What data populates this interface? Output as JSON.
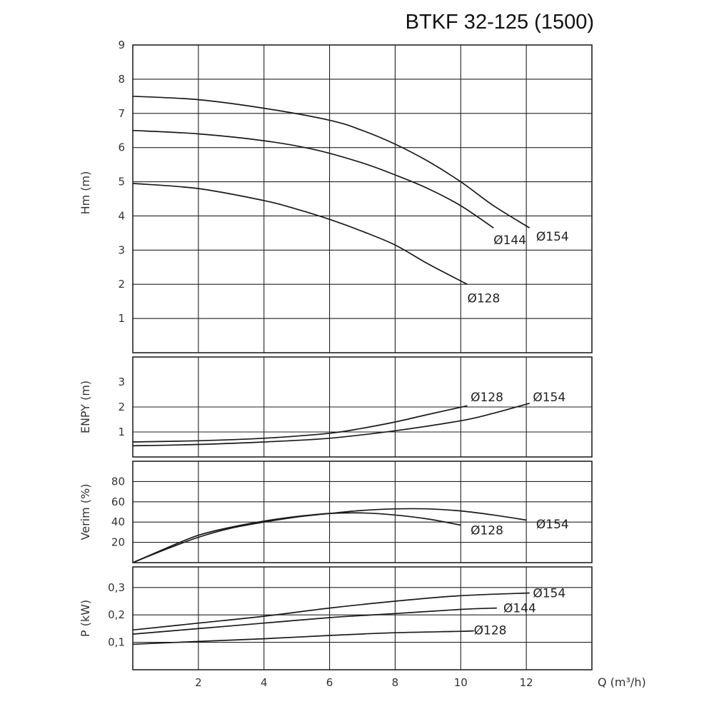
{
  "title": "BTKF 32-125 (1500)",
  "chart_data": {
    "type": "line",
    "x_label": "Q (m³/h)",
    "x_ticks": [
      2,
      4,
      6,
      8,
      10,
      12
    ],
    "x_range": [
      0,
      14
    ],
    "grid": true,
    "panels": [
      {
        "id": "head",
        "ylabel": "Hm (m)",
        "ylim": [
          0,
          9
        ],
        "y_ticks": [
          1,
          2,
          3,
          4,
          5,
          6,
          7,
          8,
          9
        ],
        "y_grid": [
          1,
          2,
          3,
          4,
          5,
          6,
          7,
          8,
          9
        ],
        "series": [
          {
            "name": "Ø154",
            "label_x": 12.3,
            "label_y": 3.4,
            "points": [
              [
                0,
                7.5
              ],
              [
                2,
                7.4
              ],
              [
                4,
                7.15
              ],
              [
                6,
                6.8
              ],
              [
                7,
                6.5
              ],
              [
                8,
                6.1
              ],
              [
                9,
                5.6
              ],
              [
                10,
                5.0
              ],
              [
                11,
                4.3
              ],
              [
                12.1,
                3.65
              ]
            ]
          },
          {
            "name": "Ø144",
            "label_x": 11.0,
            "label_y": 3.3,
            "points": [
              [
                0,
                6.5
              ],
              [
                2,
                6.4
              ],
              [
                4,
                6.2
              ],
              [
                5.5,
                5.95
              ],
              [
                7,
                5.55
              ],
              [
                8,
                5.2
              ],
              [
                9,
                4.8
              ],
              [
                10,
                4.3
              ],
              [
                11,
                3.65
              ]
            ]
          },
          {
            "name": "Ø128",
            "label_x": 10.2,
            "label_y": 1.6,
            "points": [
              [
                0,
                4.95
              ],
              [
                2,
                4.8
              ],
              [
                4,
                4.45
              ],
              [
                5,
                4.2
              ],
              [
                6,
                3.9
              ],
              [
                7,
                3.55
              ],
              [
                8,
                3.15
              ],
              [
                9,
                2.6
              ],
              [
                10.2,
                2.0
              ]
            ]
          }
        ]
      },
      {
        "id": "npsh",
        "ylabel": "ENPY (m)",
        "ylim": [
          0,
          4
        ],
        "y_ticks": [
          1,
          2,
          3
        ],
        "y_grid": [
          1,
          2
        ],
        "series": [
          {
            "name": "Ø128",
            "label_x": 10.3,
            "label_y": 2.4,
            "points": [
              [
                0,
                0.6
              ],
              [
                2,
                0.65
              ],
              [
                4,
                0.75
              ],
              [
                6,
                0.95
              ],
              [
                7,
                1.15
              ],
              [
                8,
                1.4
              ],
              [
                9,
                1.7
              ],
              [
                10.2,
                2.05
              ]
            ]
          },
          {
            "name": "Ø154",
            "label_x": 12.2,
            "label_y": 2.4,
            "points": [
              [
                0,
                0.45
              ],
              [
                2,
                0.5
              ],
              [
                4,
                0.6
              ],
              [
                6,
                0.75
              ],
              [
                8,
                1.05
              ],
              [
                10,
                1.45
              ],
              [
                11,
                1.75
              ],
              [
                12.1,
                2.15
              ]
            ]
          }
        ]
      },
      {
        "id": "efficiency",
        "ylabel": "Verim (%)",
        "ylim": [
          0,
          100
        ],
        "y_ticks": [
          20,
          40,
          60,
          80
        ],
        "y_grid": [
          20,
          40,
          60,
          80
        ],
        "series": [
          {
            "name": "Ø154",
            "label_x": 12.3,
            "label_y": 38,
            "points": [
              [
                0,
                0
              ],
              [
                1,
                13
              ],
              [
                2,
                25
              ],
              [
                3,
                34
              ],
              [
                4,
                40
              ],
              [
                5,
                45
              ],
              [
                6,
                48.5
              ],
              [
                7,
                51.5
              ],
              [
                8,
                53
              ],
              [
                9,
                53
              ],
              [
                10,
                51
              ],
              [
                11,
                47
              ],
              [
                12,
                42
              ]
            ]
          },
          {
            "name": "Ø128",
            "label_x": 10.3,
            "label_y": 32,
            "points": [
              [
                0,
                0
              ],
              [
                1,
                14
              ],
              [
                2,
                27
              ],
              [
                3,
                35
              ],
              [
                4,
                41
              ],
              [
                5,
                45.5
              ],
              [
                6,
                48.5
              ],
              [
                7,
                49
              ],
              [
                8,
                47
              ],
              [
                9,
                43
              ],
              [
                10,
                37
              ]
            ]
          }
        ]
      },
      {
        "id": "power",
        "ylabel": "P (kW)",
        "ylim": [
          0,
          0.375
        ],
        "y_ticks": [
          0.1,
          0.2,
          0.3
        ],
        "y_tick_labels": [
          "0,1",
          "0,2",
          "0,3"
        ],
        "y_grid": [
          0.1,
          0.2,
          0.3
        ],
        "series": [
          {
            "name": "Ø154",
            "label_x": 12.2,
            "label_y": 0.28,
            "points": [
              [
                0,
                0.145
              ],
              [
                2,
                0.17
              ],
              [
                4,
                0.195
              ],
              [
                6,
                0.225
              ],
              [
                8,
                0.25
              ],
              [
                10,
                0.27
              ],
              [
                12.1,
                0.28
              ]
            ]
          },
          {
            "name": "Ø144",
            "label_x": 11.3,
            "label_y": 0.225,
            "points": [
              [
                0,
                0.13
              ],
              [
                2,
                0.15
              ],
              [
                4,
                0.17
              ],
              [
                6,
                0.19
              ],
              [
                8,
                0.205
              ],
              [
                10,
                0.22
              ],
              [
                11.1,
                0.225
              ]
            ]
          },
          {
            "name": "Ø128",
            "label_x": 10.4,
            "label_y": 0.145,
            "points": [
              [
                0,
                0.093
              ],
              [
                2,
                0.103
              ],
              [
                4,
                0.113
              ],
              [
                6,
                0.125
              ],
              [
                8,
                0.135
              ],
              [
                10,
                0.14
              ],
              [
                10.4,
                0.142
              ]
            ]
          }
        ]
      }
    ]
  }
}
